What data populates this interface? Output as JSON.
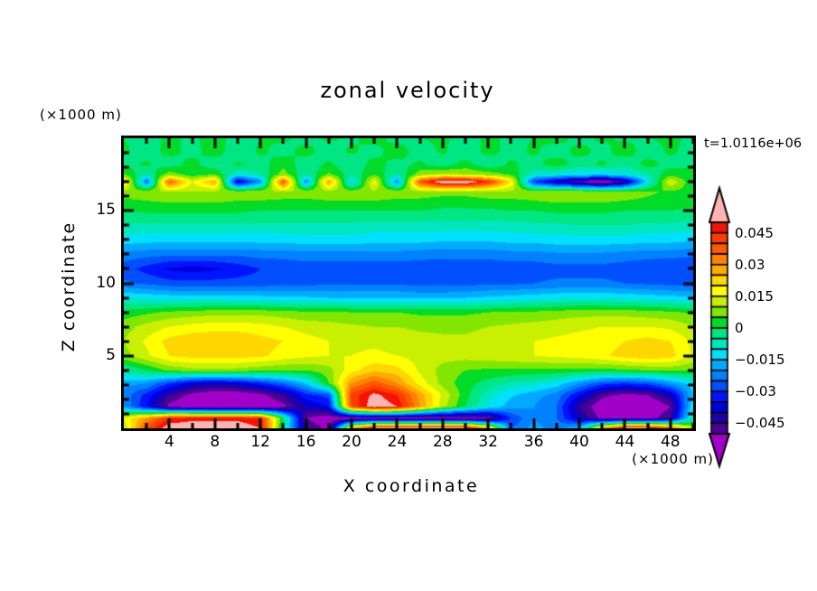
{
  "chart_data": {
    "type": "filled_contour_heatmap",
    "title": "zonal velocity",
    "timestamp": "t=1.0116e+06",
    "x_axis": {
      "label": "X coordinate",
      "unit": "(×1000 m)",
      "range": [
        0,
        50
      ],
      "major_ticks": [
        4,
        8,
        12,
        16,
        20,
        24,
        28,
        32,
        36,
        40,
        44,
        48
      ],
      "minor_ticks": [
        2,
        6,
        10,
        14,
        18,
        22,
        26,
        30,
        34,
        38,
        42,
        46,
        50
      ]
    },
    "z_axis": {
      "label": "Z coordinate",
      "unit": "(×1000 m)",
      "range": [
        0,
        20
      ],
      "major_ticks": [
        5,
        10,
        15
      ],
      "minor_ticks": [
        1,
        2,
        3,
        4,
        6,
        7,
        8,
        9,
        11,
        12,
        13,
        14,
        16,
        17,
        18,
        19
      ]
    },
    "levels": {
      "step": 0.005,
      "min": -0.05,
      "max": 0.05
    },
    "palette": {
      "under": "#A000C8",
      "over": "#FFB4B4",
      "cells": [
        "#4B0096",
        "#1E00AA",
        "#0000DC",
        "#0014FF",
        "#0050FF",
        "#0082FF",
        "#00AAFF",
        "#00E1FF",
        "#00E6BE",
        "#00E682",
        "#00DC28",
        "#82E600",
        "#C8F000",
        "#FFFF00",
        "#FFD700",
        "#FFAA00",
        "#FF8200",
        "#FF5A00",
        "#FF3C00",
        "#F51400"
      ]
    },
    "colorbar_labels": [
      {
        "text": "0.045",
        "value": 0.045
      },
      {
        "text": "0.03",
        "value": 0.03
      },
      {
        "text": "0.015",
        "value": 0.015
      },
      {
        "text": "0",
        "value": 0
      },
      {
        "text": "−0.015",
        "value": -0.015
      },
      {
        "text": "−0.03",
        "value": -0.03
      },
      {
        "text": "−0.045",
        "value": -0.045
      }
    ],
    "field": {
      "scale": 0.001,
      "x": [
        0,
        2,
        4,
        6,
        8,
        10,
        12,
        14,
        16,
        18,
        20,
        22,
        24,
        26,
        28,
        30,
        32,
        34,
        36,
        38,
        40,
        42,
        44,
        46,
        48,
        50
      ],
      "z": [
        0,
        0.7,
        1.5,
        2.3,
        3.1,
        4,
        5,
        6,
        7,
        8,
        9,
        10,
        11,
        12,
        13,
        14,
        15,
        15.7,
        16.3,
        17,
        17.5,
        18.2,
        19.1,
        20
      ],
      "values": [
        [
          10,
          40,
          55,
          55,
          55,
          55,
          50,
          -5,
          -45,
          -52,
          30,
          55,
          55,
          55,
          55,
          55,
          30,
          -25,
          -18,
          -22,
          -15,
          30,
          55,
          55,
          40,
          10
        ],
        [
          15,
          30,
          45,
          48,
          48,
          48,
          45,
          0,
          -50,
          -55,
          -55,
          -55,
          -55,
          -55,
          -55,
          -55,
          -52,
          -30,
          -20,
          -25,
          -40,
          -52,
          -54,
          -54,
          -45,
          -5
        ],
        [
          -20,
          -35,
          -52,
          -57,
          -58,
          -58,
          -57,
          -52,
          -40,
          -35,
          40,
          55,
          50,
          30,
          12,
          0,
          -10,
          -18,
          -20,
          -25,
          -45,
          -55,
          -58,
          -58,
          -50,
          -10
        ],
        [
          -22,
          -32,
          -45,
          -52,
          -55,
          -55,
          -52,
          -45,
          -32,
          -28,
          42,
          52,
          45,
          28,
          14,
          2,
          -8,
          -14,
          -18,
          -22,
          -35,
          -48,
          -52,
          -50,
          -40,
          -15
        ],
        [
          -18,
          -20,
          -30,
          -38,
          -40,
          -38,
          -32,
          -25,
          -15,
          5,
          30,
          38,
          30,
          18,
          8,
          2,
          -2,
          -6,
          -8,
          -12,
          -20,
          -28,
          -30,
          -28,
          -20,
          -12
        ],
        [
          -5,
          0,
          6,
          8,
          8,
          8,
          6,
          5,
          5,
          8,
          18,
          24,
          22,
          14,
          8,
          5,
          4,
          4,
          4,
          4,
          3,
          3,
          4,
          5,
          6,
          5
        ],
        [
          8,
          14,
          20,
          22,
          22,
          22,
          21,
          18,
          16,
          15,
          15,
          16,
          15,
          13,
          12,
          12,
          13,
          14,
          15,
          16,
          17,
          19,
          22,
          24,
          22,
          14
        ],
        [
          10,
          16,
          22,
          24,
          24,
          24,
          22,
          20,
          17,
          15,
          14,
          14,
          13,
          12,
          11,
          11,
          12,
          13,
          15,
          16,
          17,
          18,
          20,
          22,
          20,
          14
        ],
        [
          8,
          12,
          15,
          17,
          18,
          18,
          17,
          15,
          13,
          12,
          11,
          10,
          10,
          9,
          9,
          9,
          10,
          11,
          12,
          13,
          14,
          15,
          15,
          15,
          14,
          10
        ],
        [
          2,
          4,
          6,
          7,
          8,
          8,
          8,
          7,
          6,
          6,
          5,
          5,
          5,
          4,
          4,
          4,
          5,
          6,
          6,
          7,
          8,
          8,
          8,
          7,
          6,
          4
        ],
        [
          -10,
          -11,
          -12,
          -12,
          -12,
          -13,
          -13,
          -14,
          -14,
          -15,
          -15,
          -15,
          -15,
          -16,
          -16,
          -15,
          -14,
          -13,
          -12,
          -11,
          -10,
          -10,
          -11,
          -12,
          -13,
          -14
        ],
        [
          -24,
          -26,
          -28,
          -28,
          -28,
          -28,
          -28,
          -27,
          -27,
          -26,
          -26,
          -26,
          -26,
          -27,
          -27,
          -27,
          -26,
          -26,
          -25,
          -24,
          -24,
          -24,
          -25,
          -26,
          -27,
          -28
        ],
        [
          -28,
          -32,
          -36,
          -37,
          -36,
          -33,
          -30,
          -29,
          -28,
          -28,
          -28,
          -28,
          -28,
          -28,
          -29,
          -29,
          -29,
          -28,
          -28,
          -27,
          -27,
          -27,
          -28,
          -29,
          -30,
          -30
        ],
        [
          -22,
          -23,
          -24,
          -24,
          -24,
          -24,
          -23,
          -23,
          -22,
          -22,
          -22,
          -22,
          -22,
          -23,
          -23,
          -23,
          -23,
          -22,
          -22,
          -21,
          -21,
          -21,
          -22,
          -23,
          -23,
          -24
        ],
        [
          -12,
          -13,
          -13,
          -13,
          -13,
          -13,
          -13,
          -13,
          -12,
          -12,
          -12,
          -13,
          -13,
          -13,
          -14,
          -14,
          -14,
          -13,
          -13,
          -12,
          -12,
          -12,
          -12,
          -13,
          -13,
          -14
        ],
        [
          -6,
          -6,
          -6,
          -6,
          -6,
          -6,
          -6,
          -6,
          -6,
          -6,
          -6,
          -7,
          -7,
          -7,
          -7,
          -7,
          -7,
          -7,
          -6,
          -6,
          -5,
          -5,
          -5,
          -6,
          -6,
          -7
        ],
        [
          0,
          1,
          1,
          1,
          1,
          1,
          0,
          0,
          0,
          0,
          0,
          0,
          0,
          0,
          -1,
          -1,
          -1,
          0,
          0,
          1,
          1,
          1,
          0,
          0,
          0,
          -1
        ],
        [
          4,
          5,
          6,
          6,
          6,
          5,
          5,
          4,
          4,
          5,
          5,
          5,
          4,
          4,
          3,
          3,
          4,
          4,
          5,
          6,
          6,
          6,
          5,
          4,
          3,
          2
        ],
        [
          8,
          9,
          10,
          10,
          9,
          8,
          9,
          10,
          9,
          8,
          8,
          9,
          9,
          8,
          7,
          7,
          8,
          9,
          9,
          10,
          10,
          9,
          8,
          6,
          4,
          3
        ],
        [
          25,
          -25,
          38,
          15,
          28,
          -40,
          -20,
          40,
          -22,
          30,
          -15,
          18,
          -22,
          40,
          58,
          58,
          45,
          20,
          -30,
          -42,
          -50,
          -58,
          -45,
          -12,
          15,
          0
        ],
        [
          5,
          -5,
          8,
          2,
          5,
          -10,
          -5,
          8,
          -5,
          6,
          -3,
          4,
          -5,
          8,
          12,
          10,
          8,
          4,
          -8,
          -10,
          -12,
          -14,
          -10,
          -5,
          3,
          0
        ],
        [
          -2,
          1,
          -3,
          2,
          -4,
          1,
          -2,
          3,
          -3,
          1,
          -4,
          2,
          -2,
          1,
          -3,
          2,
          -4,
          1,
          -2,
          3,
          -3,
          1,
          -4,
          2,
          -2,
          0
        ],
        [
          1,
          -3,
          2,
          -2,
          3,
          -4,
          1,
          -2,
          2,
          -3,
          1,
          -2,
          3,
          -3,
          1,
          -4,
          2,
          -2,
          1,
          -3,
          2,
          -2,
          3,
          -3,
          1,
          -2
        ],
        [
          0,
          -2,
          1,
          -1,
          2,
          -2,
          0,
          1,
          -2,
          1,
          -1,
          2,
          -2,
          0,
          1,
          -2,
          1,
          -1,
          0,
          2,
          -2,
          1,
          -1,
          0,
          1,
          -1
        ]
      ]
    }
  },
  "layout_hints": {
    "grid": "off",
    "colorbar_position": "right",
    "frame_color": "#000000",
    "background": "#ffffff"
  }
}
